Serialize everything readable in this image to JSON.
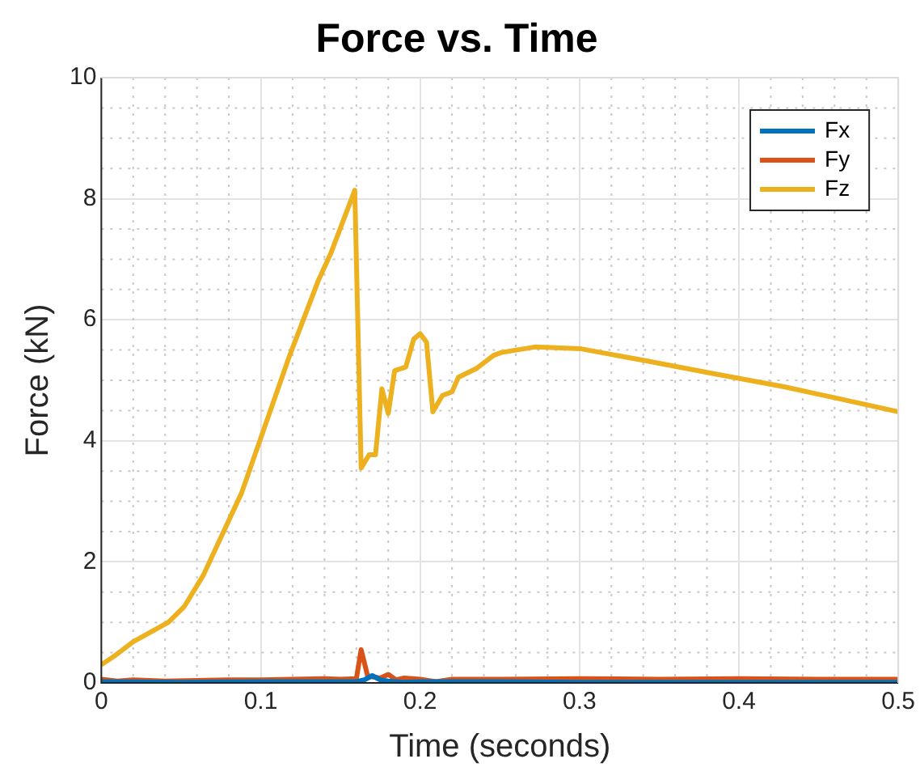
{
  "chart_data": {
    "type": "line",
    "title": "Force vs. Time",
    "xlabel": "Time (seconds)",
    "ylabel": "Force (kN)",
    "xlim": [
      0,
      0.5
    ],
    "ylim": [
      0,
      10
    ],
    "xticks": [
      0,
      {
        "value": 0.02,
        "label": null
      },
      {
        "value": 0.04,
        "label": null
      },
      {
        "value": 0.06,
        "label": null
      },
      {
        "value": 0.08,
        "label": null
      },
      0.1,
      {
        "value": 0.12,
        "label": null
      },
      {
        "value": 0.14,
        "label": null
      },
      {
        "value": 0.16,
        "label": null
      },
      {
        "value": 0.18,
        "label": null
      },
      0.2,
      {
        "value": 0.22,
        "label": null
      },
      {
        "value": 0.24,
        "label": null
      },
      {
        "value": 0.26,
        "label": null
      },
      {
        "value": 0.28,
        "label": null
      },
      0.3,
      {
        "value": 0.32,
        "label": null
      },
      {
        "value": 0.34,
        "label": null
      },
      {
        "value": 0.36,
        "label": null
      },
      {
        "value": 0.38,
        "label": null
      },
      0.4,
      {
        "value": 0.42,
        "label": null
      },
      {
        "value": 0.44,
        "label": null
      },
      {
        "value": 0.46,
        "label": null
      },
      {
        "value": 0.48,
        "label": null
      },
      0.5
    ],
    "yticks": [
      0,
      {
        "value": 0.5,
        "label": null
      },
      {
        "value": 1,
        "label": null
      },
      {
        "value": 1.5,
        "label": null
      },
      2,
      {
        "value": 2.5,
        "label": null
      },
      {
        "value": 3,
        "label": null
      },
      {
        "value": 3.5,
        "label": null
      },
      4,
      {
        "value": 4.5,
        "label": null
      },
      {
        "value": 5,
        "label": null
      },
      {
        "value": 5.5,
        "label": null
      },
      6,
      {
        "value": 6.5,
        "label": null
      },
      {
        "value": 7,
        "label": null
      },
      {
        "value": 7.5,
        "label": null
      },
      8,
      {
        "value": 8.5,
        "label": null
      },
      {
        "value": 9,
        "label": null
      },
      {
        "value": 9.5,
        "label": null
      },
      10
    ],
    "grid": true,
    "legend": "top right",
    "marker": "none",
    "line_style": "solid",
    "series": [
      {
        "name": "Fx",
        "color": "#0072bd",
        "x": [
          0,
          0.05,
          0.1,
          0.15,
          0.16,
          0.165,
          0.17,
          0.175,
          0.18,
          0.19,
          0.2,
          0.25,
          0.3,
          0.35,
          0.4,
          0.45,
          0.5
        ],
        "values": [
          0.02,
          0.01,
          0.02,
          0.02,
          0.02,
          0.05,
          0.12,
          0.05,
          0.03,
          0.01,
          0.02,
          0.02,
          0.01,
          0.01,
          0.01,
          0.01,
          0.01
        ]
      },
      {
        "name": "Fy",
        "color": "#d95319",
        "x": [
          0,
          0.01,
          0.02,
          0.04,
          0.06,
          0.08,
          0.1,
          0.12,
          0.14,
          0.15,
          0.16,
          0.163,
          0.167,
          0.17,
          0.175,
          0.18,
          0.185,
          0.19,
          0.2,
          0.21,
          0.22,
          0.25,
          0.3,
          0.35,
          0.4,
          0.45,
          0.5
        ],
        "values": [
          0.06,
          0.03,
          0.05,
          0.03,
          0.04,
          0.05,
          0.05,
          0.06,
          0.07,
          0.06,
          0.07,
          0.55,
          0.12,
          0.1,
          0.08,
          0.14,
          0.05,
          0.08,
          0.06,
          0.02,
          0.06,
          0.06,
          0.07,
          0.06,
          0.07,
          0.06,
          0.06
        ]
      },
      {
        "name": "Fz",
        "color": "#edb120",
        "x": [
          0,
          0.008,
          0.02,
          0.042,
          0.052,
          0.064,
          0.088,
          0.118,
          0.136,
          0.144,
          0.159,
          0.163,
          0.168,
          0.172,
          0.176,
          0.18,
          0.184,
          0.191,
          0.196,
          0.2,
          0.204,
          0.208,
          0.214,
          0.22,
          0.224,
          0.235,
          0.246,
          0.251,
          0.272,
          0.301,
          0.34,
          0.384,
          0.429,
          0.462,
          0.5
        ],
        "values": [
          0.3,
          0.44,
          0.68,
          1.0,
          1.26,
          1.78,
          3.14,
          5.4,
          6.64,
          7.1,
          8.14,
          3.55,
          3.77,
          3.77,
          4.86,
          4.45,
          5.16,
          5.22,
          5.68,
          5.77,
          5.63,
          4.48,
          4.75,
          4.81,
          5.05,
          5.19,
          5.41,
          5.46,
          5.55,
          5.52,
          5.33,
          5.11,
          4.89,
          4.7,
          4.48
        ]
      }
    ]
  }
}
